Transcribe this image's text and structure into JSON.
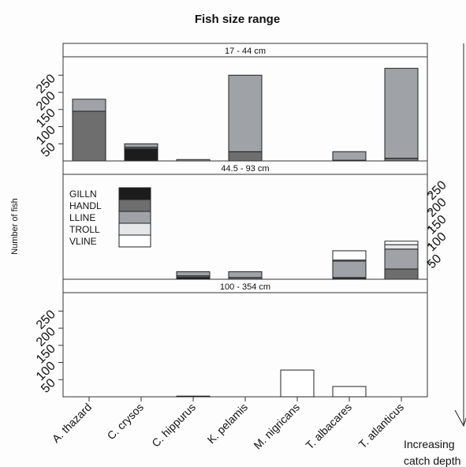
{
  "chart_data": {
    "type": "bar",
    "stacked": true,
    "title": "Fish size range",
    "ylabel": "Number of fish",
    "side_note_line1": "Increasing",
    "side_note_line2": "catch depth",
    "categories": [
      "A. thazard",
      "C. crysos",
      "C. hippurus",
      "K. pelamis",
      "M. nigricans",
      "T. albacares",
      "T. atlanticus"
    ],
    "gear_types": [
      "GILLN",
      "HANDL",
      "LLINE",
      "TROLL",
      "VLINE"
    ],
    "colors": {
      "GILLN": "#1c1c1c",
      "HANDL": "#6e6e6e",
      "LLINE": "#9fa3a7",
      "TROLL": "#e4e6e8",
      "VLINE": "#ffffff"
    },
    "ylim": [
      0,
      300
    ],
    "yticks": [
      50,
      100,
      150,
      200,
      250
    ],
    "panels": [
      {
        "label": "17 - 44 cm",
        "axis_side": "left",
        "values": {
          "GILLN": [
            0,
            35,
            0,
            0,
            0,
            0,
            0
          ],
          "HANDL": [
            145,
            5,
            0,
            27,
            0,
            2,
            8
          ],
          "LLINE": [
            35,
            10,
            4,
            223,
            0,
            25,
            262
          ],
          "TROLL": [
            0,
            0,
            0,
            0,
            0,
            0,
            0
          ],
          "VLINE": [
            0,
            0,
            0,
            0,
            0,
            0,
            0
          ]
        }
      },
      {
        "label": "44.5 - 93 cm",
        "axis_side": "right",
        "legend": true,
        "values": {
          "GILLN": [
            0,
            0,
            5,
            0,
            0,
            2,
            0
          ],
          "HANDL": [
            0,
            0,
            5,
            5,
            0,
            3,
            30
          ],
          "LLINE": [
            0,
            0,
            12,
            17,
            0,
            48,
            58
          ],
          "TROLL": [
            0,
            0,
            0,
            0,
            0,
            3,
            13
          ],
          "VLINE": [
            0,
            0,
            0,
            0,
            0,
            27,
            10
          ]
        }
      },
      {
        "label": "100 - 354 cm",
        "axis_side": "left",
        "values": {
          "GILLN": [
            0,
            0,
            2,
            0,
            0,
            0,
            0
          ],
          "HANDL": [
            0,
            0,
            0,
            0,
            0,
            0,
            0
          ],
          "LLINE": [
            0,
            0,
            0,
            0,
            0,
            0,
            0
          ],
          "TROLL": [
            0,
            0,
            0,
            0,
            0,
            0,
            0
          ],
          "VLINE": [
            0,
            0,
            0,
            0,
            78,
            30,
            0
          ]
        }
      }
    ]
  }
}
